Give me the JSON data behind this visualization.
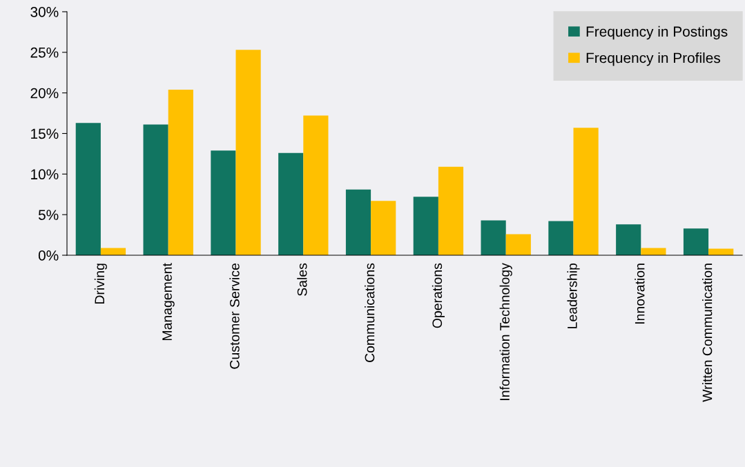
{
  "chart_data": {
    "type": "bar",
    "categories": [
      "Driving",
      "Management",
      "Customer Service",
      "Sales",
      "Communications",
      "Operations",
      "Information Technology",
      "Leadership",
      "Innovation",
      "Written Communication"
    ],
    "series": [
      {
        "name": "Frequency in Postings",
        "color": "#117561",
        "values": [
          16.3,
          16.1,
          12.9,
          12.6,
          8.1,
          7.2,
          4.3,
          4.2,
          3.8,
          3.3
        ]
      },
      {
        "name": "Frequency in Profiles",
        "color": "#ffc000",
        "values": [
          0.9,
          20.4,
          25.3,
          17.2,
          6.7,
          10.9,
          2.6,
          15.7,
          0.9,
          0.8
        ]
      }
    ],
    "ylim": [
      0,
      30
    ],
    "yticks": [
      {
        "value": 0,
        "label": "0%"
      },
      {
        "value": 5,
        "label": "5%"
      },
      {
        "value": 10,
        "label": "10%"
      },
      {
        "value": 15,
        "label": "15%"
      },
      {
        "value": 20,
        "label": "20%"
      },
      {
        "value": 25,
        "label": "25%"
      },
      {
        "value": 30,
        "label": "30%"
      }
    ],
    "grid": false,
    "legend": "top right"
  }
}
